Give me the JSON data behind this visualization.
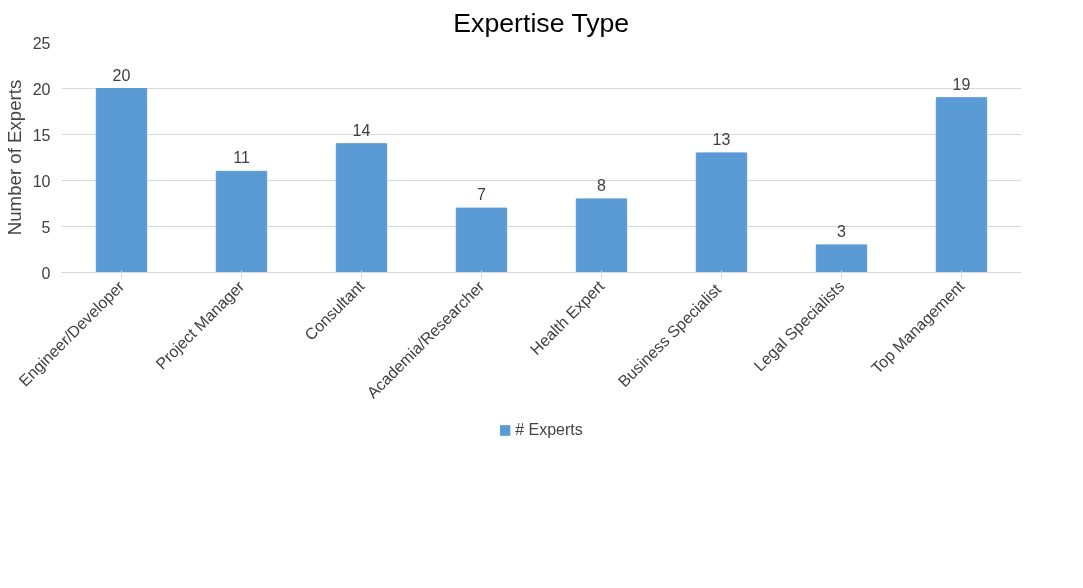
{
  "chart_data": {
    "type": "bar",
    "title": "Expertise Type",
    "ylabel": "Number of Experts",
    "categories": [
      "Engineer/Developer",
      "Project Manager",
      "Consultant",
      "Academia/Researcher",
      "Health Expert",
      "Business  Specialist",
      "Legal Specialists",
      "Top Management"
    ],
    "series": [
      {
        "name": "# Experts",
        "color": "#5b9bd5",
        "values": [
          20,
          11,
          14,
          7,
          8,
          13,
          3,
          19
        ]
      }
    ],
    "ylim": [
      0,
      25
    ],
    "yticks": [
      0,
      5,
      10,
      15,
      20,
      25
    ],
    "grid": "y",
    "legend": "bottom",
    "data_labels": true
  }
}
